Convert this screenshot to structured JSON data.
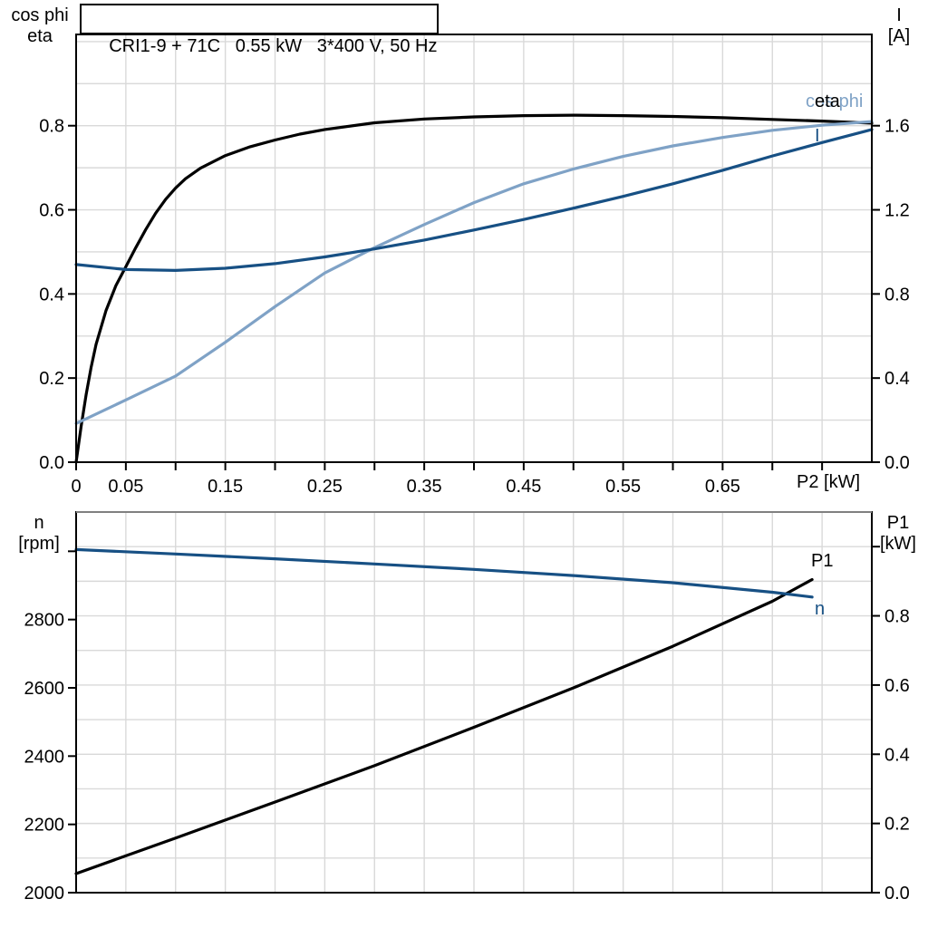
{
  "title_box": {
    "text": "CRI1-9 + 71C   0.55 kW   3*400 V, 50 Hz"
  },
  "colors": {
    "curve_black": "#000000",
    "curve_dark_blue": "#175084",
    "curve_light_blue": "#7FA2C6",
    "grid": "#D9D9D9",
    "frame": "#000000",
    "frame_gray": "#808080"
  },
  "chart_data": [
    {
      "type": "line",
      "name": "motor-top",
      "grid_axis": "left",
      "axes": {
        "left": {
          "label_lines": [
            "cos phi",
            "eta"
          ],
          "range": [
            0,
            1.017
          ],
          "grid_step": 0.1,
          "tick_values": [
            0,
            0.2,
            0.4,
            0.6,
            0.8
          ],
          "tick_labels": [
            "0.0",
            "0.2",
            "0.4",
            "0.6",
            "0.8"
          ]
        },
        "right": {
          "label_lines": [
            "I",
            "[A]"
          ],
          "range": [
            0,
            2.034
          ],
          "tick_values": [
            0,
            0.4,
            0.8,
            1.2,
            1.6
          ],
          "tick_labels": [
            "0.0",
            "0.4",
            "0.8",
            "1.2",
            "1.6"
          ]
        },
        "x": {
          "label": "P2 [kW]",
          "range": [
            0,
            0.8
          ],
          "tick_step": 0.05,
          "show_ticks": true,
          "labeled_ticks": [
            0,
            0.05,
            0.15,
            0.25,
            0.35,
            0.45,
            0.55,
            0.65
          ],
          "tick_labels": [
            "0",
            "0.05",
            "0.15",
            "0.25",
            "0.35",
            "0.45",
            "0.55",
            "0.65"
          ]
        }
      },
      "series": [
        {
          "name": "eta",
          "label": "eta",
          "axis": "left",
          "color_key": "curve_black",
          "points": [
            [
              0,
              0
            ],
            [
              0.005,
              0.085
            ],
            [
              0.01,
              0.16
            ],
            [
              0.015,
              0.225
            ],
            [
              0.02,
              0.28
            ],
            [
              0.03,
              0.36
            ],
            [
              0.04,
              0.42
            ],
            [
              0.05,
              0.465
            ],
            [
              0.06,
              0.51
            ],
            [
              0.07,
              0.553
            ],
            [
              0.08,
              0.592
            ],
            [
              0.09,
              0.625
            ],
            [
              0.1,
              0.652
            ],
            [
              0.11,
              0.674
            ],
            [
              0.125,
              0.699
            ],
            [
              0.15,
              0.729
            ],
            [
              0.175,
              0.75
            ],
            [
              0.2,
              0.766
            ],
            [
              0.225,
              0.78
            ],
            [
              0.25,
              0.791
            ],
            [
              0.3,
              0.807
            ],
            [
              0.35,
              0.816
            ],
            [
              0.4,
              0.821
            ],
            [
              0.45,
              0.824
            ],
            [
              0.5,
              0.825
            ],
            [
              0.55,
              0.824
            ],
            [
              0.6,
              0.822
            ],
            [
              0.65,
              0.819
            ],
            [
              0.7,
              0.815
            ],
            [
              0.75,
              0.811
            ],
            [
              0.8,
              0.806
            ]
          ]
        },
        {
          "name": "cos-phi",
          "label": "cos phi",
          "axis": "left",
          "color_key": "curve_light_blue",
          "points": [
            [
              0,
              0.092
            ],
            [
              0.05,
              0.148
            ],
            [
              0.1,
              0.205
            ],
            [
              0.15,
              0.285
            ],
            [
              0.2,
              0.37
            ],
            [
              0.25,
              0.45
            ],
            [
              0.3,
              0.51
            ],
            [
              0.35,
              0.565
            ],
            [
              0.4,
              0.617
            ],
            [
              0.45,
              0.662
            ],
            [
              0.5,
              0.697
            ],
            [
              0.55,
              0.727
            ],
            [
              0.6,
              0.752
            ],
            [
              0.65,
              0.772
            ],
            [
              0.7,
              0.789
            ],
            [
              0.75,
              0.801
            ],
            [
              0.8,
              0.81
            ]
          ]
        },
        {
          "name": "current",
          "label": "I",
          "axis": "right",
          "color_key": "curve_dark_blue",
          "points": [
            [
              0,
              0.94
            ],
            [
              0.05,
              0.916
            ],
            [
              0.1,
              0.912
            ],
            [
              0.15,
              0.922
            ],
            [
              0.2,
              0.944
            ],
            [
              0.25,
              0.976
            ],
            [
              0.3,
              1.014
            ],
            [
              0.35,
              1.056
            ],
            [
              0.4,
              1.104
            ],
            [
              0.45,
              1.154
            ],
            [
              0.5,
              1.208
            ],
            [
              0.55,
              1.264
            ],
            [
              0.6,
              1.324
            ],
            [
              0.65,
              1.388
            ],
            [
              0.7,
              1.456
            ],
            [
              0.75,
              1.52
            ],
            [
              0.8,
              1.582
            ]
          ]
        }
      ]
    },
    {
      "type": "line",
      "name": "motor-bottom",
      "grid_axis": "right",
      "top_edge_gray": true,
      "axes": {
        "left": {
          "label_lines": [
            "n",
            "[rpm]"
          ],
          "range": [
            2000,
            3115
          ],
          "tick_values": [
            2000,
            2200,
            2400,
            2600,
            2800,
            3000
          ],
          "tick_labels": [
            "2000",
            "2200",
            "2400",
            "2600",
            "2800",
            ""
          ]
        },
        "right": {
          "label_lines": [
            "P1",
            "[kW]"
          ],
          "range": [
            0,
            1.1
          ],
          "grid_step": 0.1,
          "tick_values": [
            0,
            0.2,
            0.4,
            0.6,
            0.8,
            1.0
          ],
          "tick_labels": [
            "0.0",
            "0.2",
            "0.4",
            "0.6",
            "0.8",
            ""
          ]
        },
        "x": {
          "label": "",
          "range": [
            0,
            0.8
          ],
          "tick_step": 0.05,
          "show_ticks": false,
          "labeled_ticks": [],
          "tick_labels": []
        }
      },
      "series": [
        {
          "name": "p1",
          "label": "P1",
          "axis": "right",
          "color_key": "curve_black",
          "points": [
            [
              0,
              0.055
            ],
            [
              0.1,
              0.158
            ],
            [
              0.2,
              0.262
            ],
            [
              0.3,
              0.367
            ],
            [
              0.4,
              0.478
            ],
            [
              0.5,
              0.592
            ],
            [
              0.6,
              0.712
            ],
            [
              0.7,
              0.842
            ],
            [
              0.74,
              0.905
            ]
          ]
        },
        {
          "name": "speed",
          "label": "n",
          "axis": "left",
          "color_key": "curve_dark_blue",
          "points": [
            [
              0,
              3005
            ],
            [
              0.1,
              2992
            ],
            [
              0.2,
              2978
            ],
            [
              0.3,
              2963
            ],
            [
              0.4,
              2947
            ],
            [
              0.5,
              2929
            ],
            [
              0.6,
              2908
            ],
            [
              0.7,
              2880
            ],
            [
              0.74,
              2866
            ]
          ]
        }
      ]
    }
  ]
}
